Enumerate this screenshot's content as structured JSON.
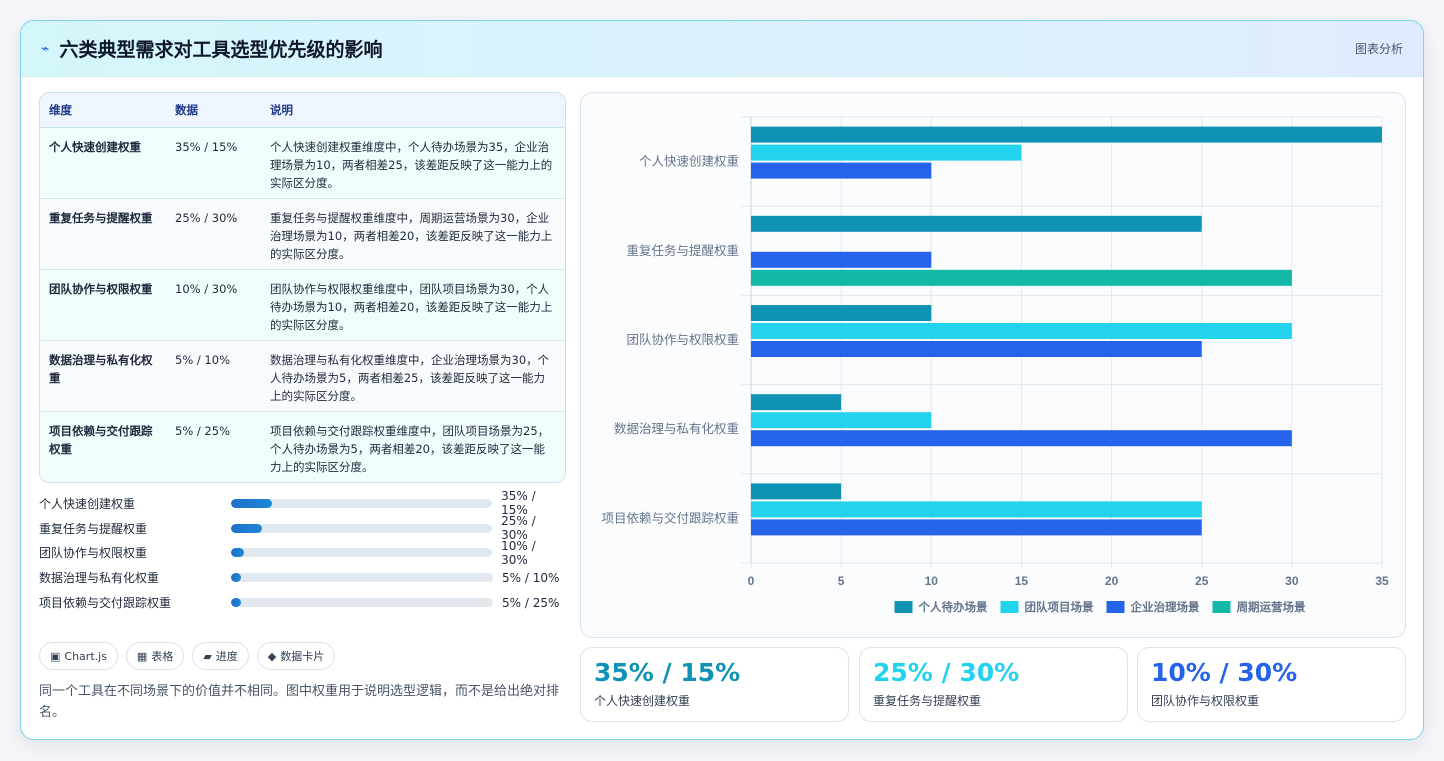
{
  "header": {
    "icon": "lightning-icon",
    "title": "六类典型需求对工具选型优先级的影响",
    "tag": "图表分析"
  },
  "table": {
    "headers": [
      "维度",
      "数据",
      "说明"
    ],
    "rows": [
      {
        "dim": "个人快速创建权重",
        "data": "35% / 15%",
        "desc": "个人快速创建权重维度中，个人待办场景为35，企业治理场景为10，两者相差25，该差距反映了这一能力上的实际区分度。"
      },
      {
        "dim": "重复任务与提醒权重",
        "data": "25% / 30%",
        "desc": "重复任务与提醒权重维度中，周期运营场景为30，企业治理场景为10，两者相差20，该差距反映了这一能力上的实际区分度。"
      },
      {
        "dim": "团队协作与权限权重",
        "data": "10% / 30%",
        "desc": "团队协作与权限权重维度中，团队项目场景为30，个人待办场景为10，两者相差20，该差距反映了这一能力上的实际区分度。"
      },
      {
        "dim": "数据治理与私有化权重",
        "data": "5% / 10%",
        "desc": "数据治理与私有化权重维度中，企业治理场景为30，个人待办场景为5，两者相差25，该差距反映了这一能力上的实际区分度。"
      },
      {
        "dim": "项目依赖与交付跟踪权重",
        "data": "5% / 25%",
        "desc": "项目依赖与交付跟踪权重维度中，团队项目场景为25，个人待办场景为5，两者相差20，该差距反映了这一能力上的实际区分度。"
      }
    ]
  },
  "progress": [
    {
      "label": "个人快速创建权重",
      "value": "35% / 15%",
      "fraction": 0.16
    },
    {
      "label": "重复任务与提醒权重",
      "value": "25% / 30%",
      "fraction": 0.12
    },
    {
      "label": "团队协作与权限权重",
      "value": "10% / 30%",
      "fraction": 0.05
    },
    {
      "label": "数据治理与私有化权重",
      "value": "5% / 10%",
      "fraction": 0.04
    },
    {
      "label": "项目依赖与交付跟踪权重",
      "value": "5% / 25%",
      "fraction": 0.04
    }
  ],
  "chips": [
    {
      "icon": "▣",
      "label": "Chart.js"
    },
    {
      "icon": "▦",
      "label": "表格"
    },
    {
      "icon": "▰",
      "label": "进度"
    },
    {
      "icon": "◆",
      "label": "数据卡片"
    }
  ],
  "note": "同一个工具在不同场景下的价值并不相同。图中权重用于说明选型逻辑，而不是给出绝对排名。",
  "chart_data": {
    "type": "bar",
    "orientation": "horizontal",
    "categories": [
      "个人快速创建权重",
      "重复任务与提醒权重",
      "团队协作与权限权重",
      "数据治理与私有化权重",
      "项目依赖与交付跟踪权重"
    ],
    "series": [
      {
        "name": "个人待办场景",
        "color": "#0e93b5",
        "values": [
          35,
          25,
          10,
          5,
          5
        ]
      },
      {
        "name": "团队项目场景",
        "color": "#22d3ee",
        "values": [
          15,
          null,
          30,
          10,
          25
        ]
      },
      {
        "name": "企业治理场景",
        "color": "#2563eb",
        "values": [
          10,
          10,
          25,
          30,
          25
        ]
      },
      {
        "name": "周期运营场景",
        "color": "#14b8a6",
        "values": [
          null,
          30,
          null,
          null,
          null
        ]
      }
    ],
    "xlim": [
      0,
      35
    ],
    "xticks": [
      0,
      5,
      10,
      15,
      20,
      25,
      30,
      35
    ],
    "grid": true,
    "legend": "bottom"
  },
  "stats": [
    {
      "value": "35% / 15%",
      "label": "个人快速创建权重",
      "color": "#0e93b5"
    },
    {
      "value": "25% / 30%",
      "label": "重复任务与提醒权重",
      "color": "#22d3ee"
    },
    {
      "value": "10% / 30%",
      "label": "团队协作与权限权重",
      "color": "#2563eb"
    }
  ]
}
